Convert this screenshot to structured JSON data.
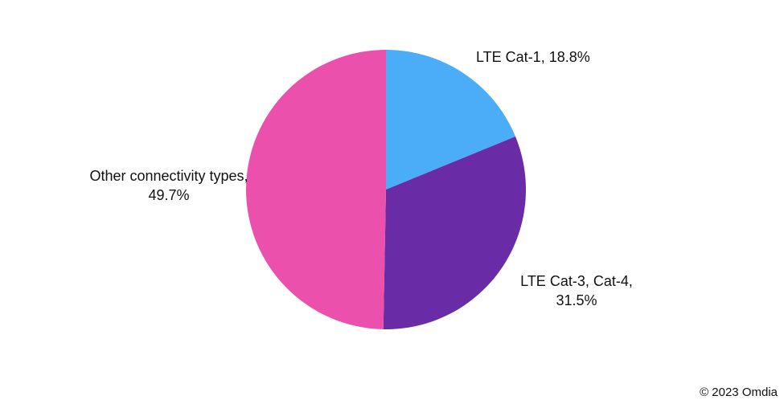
{
  "chart_data": {
    "type": "pie",
    "title": "",
    "slices": [
      {
        "label": "LTE Cat-1",
        "value": 18.8,
        "display": "LTE Cat-1, 18.8%",
        "color": "#4BADF7"
      },
      {
        "label": "LTE Cat-3, Cat-4",
        "value": 31.5,
        "display": "LTE Cat-3, Cat-4, 31.5%",
        "color": "#6A2BA6"
      },
      {
        "label": "Other connectivity types",
        "value": 49.7,
        "display": "Other connectivity types, 49.7%",
        "color": "#EC50AD"
      }
    ],
    "start_angle": "12 o'clock",
    "direction": "clockwise",
    "legend": "none (data labels beside slices)"
  },
  "footer": {
    "copyright": "© 2023 Omdia"
  }
}
